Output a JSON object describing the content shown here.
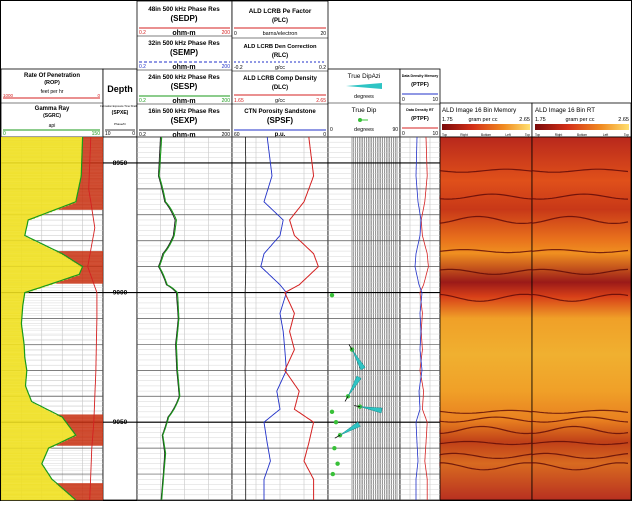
{
  "header": {
    "tracks": {
      "rop_gr": {
        "rop_title": "Rate Of Penetration",
        "rop_mnem": "(ROP)",
        "rop_unit": "feet per hr",
        "rop_left": "1000",
        "rop_right": "0",
        "gr_title": "Gamma Ray",
        "gr_mnem": "(SGRC)",
        "gr_unit": "api",
        "gr_left": "0",
        "gr_right": "150"
      },
      "depth": {
        "title": "Depth",
        "spxe_title": "Formation Exposure Time Shallow",
        "spxe_mnem": "(SPXE)",
        "spxe_unit": "Phase/hr",
        "spxe_left": "10",
        "spxe_right": "0"
      },
      "resistivity": {
        "c1_title": "48in 500 kHz Phase Res",
        "c1_mnem": "(SEDP)",
        "c1_unit": "ohm-m",
        "c1_left": "0.2",
        "c1_right": "200",
        "c2_title": "32in 500 kHz Phase Res",
        "c2_mnem": "(SEMP)",
        "c2_unit": "ohm-m",
        "c2_left": "0.2",
        "c2_right": "200",
        "c3_title": "24in 500 kHz Phase Res",
        "c3_mnem": "(SESP)",
        "c3_unit": "ohm-m",
        "c3_left": "0.2",
        "c3_right": "200",
        "c4_title": "16in 500 kHz Phase Res",
        "c4_mnem": "(SEXP)",
        "c4_unit": "ohm-m",
        "c4_left": "0.2",
        "c4_right": "200"
      },
      "density": {
        "c1_title": "ALD LCRB Pe Factor",
        "c1_mnem": "(PLC)",
        "c1_unit": "barns/electron",
        "c1_left": "0",
        "c1_right": "20",
        "c2_title": "ALD LCRB Den Correction",
        "c2_mnem": "(RLC)",
        "c2_unit": "g/cc",
        "c2_left": "-0.2",
        "c2_right": "0.2",
        "c3_title": "ALD LCRB Comp Density",
        "c3_mnem": "(DLC)",
        "c3_unit": "g/cc",
        "c3_left": "1.65",
        "c3_right": "2.65",
        "c4_title": "CTN Porosity Sandstone",
        "c4_mnem": "(SPSF)",
        "c4_unit": "p.u.",
        "c4_left": "60",
        "c4_right": "0"
      },
      "dip": {
        "azi_title": "True DipAzi",
        "azi_unit": "degrees",
        "dip_title": "True Dip",
        "dip_unit": "degrees",
        "dip_left": "0",
        "dip_right": "90"
      },
      "ptpf": {
        "title": "Data Density Memory",
        "mnem1": "(PTPF)",
        "left1": "0",
        "right1": "10",
        "title2": "Data Density RT",
        "mnem2": "(PTPF)",
        "left2": "0",
        "right2": "10"
      },
      "image_mem": {
        "title": "ALD Image 16 Bin Memory",
        "scale_left": "1.75",
        "scale_mid": "gram per cc",
        "scale_right": "2.65",
        "quads": [
          "Top",
          "Right",
          "Bottom",
          "Left",
          "Top"
        ]
      },
      "image_rt": {
        "title": "ALD Image 16 Bin RT",
        "scale_left": "1.75",
        "scale_mid": "gram per cc",
        "scale_right": "2.65",
        "quads": [
          "Top",
          "Right",
          "Bottom",
          "Left",
          "Top"
        ]
      }
    }
  },
  "colors": {
    "sedp": "#d42020",
    "semp": "#2030c8",
    "sesp": "#1a9a1a",
    "sexp": "#222222",
    "plc": "#d42020",
    "rlc": "#2030c8",
    "dlc": "#d42020",
    "spsf": "#2030c8",
    "gr_fill_sand": "#f0e020",
    "gr_fill_shale": "#c83010",
    "ptpf_mem": "#d42020",
    "ptpf_rt": "#2030c8",
    "dip_tadpole": "#2ec4c4",
    "dip_point": "#38c038"
  },
  "chart_data": {
    "type": "well-log",
    "depth_labels": [
      "8950",
      "9000",
      "9050"
    ],
    "depth_range": [
      8940,
      9080
    ],
    "gr": {
      "unit": "api",
      "range": [
        0,
        150
      ],
      "depth": [
        8940,
        8955,
        8965,
        8972,
        8978,
        8985,
        8990,
        8993,
        8997,
        9000,
        9005,
        9012,
        9020,
        9025,
        9030,
        9036,
        9042,
        9048,
        9055,
        9060,
        9066,
        9072,
        9080
      ],
      "values": [
        120,
        118,
        110,
        40,
        35,
        90,
        120,
        115,
        70,
        35,
        32,
        30,
        34,
        35,
        38,
        36,
        45,
        90,
        110,
        70,
        60,
        75,
        110
      ]
    },
    "rop": {
      "unit": "feet per hr",
      "range": [
        1000,
        0
      ],
      "depth": [
        8940,
        8960,
        8975,
        8990,
        9000,
        9010,
        9030,
        9050,
        9060,
        9080
      ],
      "values": [
        120,
        140,
        80,
        150,
        60,
        60,
        70,
        90,
        110,
        130
      ]
    },
    "resistivity": {
      "unit": "ohm-m",
      "range": [
        0.2,
        200
      ],
      "depth": [
        8940,
        8955,
        8965,
        8972,
        8978,
        8985,
        8990,
        8997,
        9000,
        9010,
        9020,
        9030,
        9040,
        9048,
        9055,
        9062,
        9070,
        9080
      ],
      "sesp": [
        1.2,
        1.0,
        1.6,
        3.5,
        3.0,
        1.4,
        1.0,
        1.8,
        3.8,
        4.2,
        3.5,
        3.8,
        4.5,
        2.0,
        1.3,
        1.6,
        1.4,
        1.2
      ],
      "sexp": [
        1.1,
        0.95,
        1.5,
        3.2,
        2.8,
        1.3,
        0.95,
        1.7,
        3.5,
        4.0,
        3.3,
        3.6,
        4.3,
        1.9,
        1.25,
        1.5,
        1.35,
        1.15
      ]
    },
    "density": {
      "depth": [
        8940,
        8955,
        8965,
        8972,
        8978,
        8985,
        8990,
        8997,
        9000,
        9008,
        9015,
        9022,
        9030,
        9038,
        9045,
        9050,
        9058,
        9065,
        9072,
        9080
      ],
      "dlc": [
        2.45,
        2.5,
        2.4,
        2.25,
        2.3,
        2.5,
        2.55,
        2.35,
        2.2,
        2.3,
        2.25,
        2.3,
        2.2,
        2.35,
        2.3,
        2.5,
        2.45,
        2.4,
        2.5,
        2.5
      ],
      "spsf": [
        38,
        35,
        40,
        28,
        30,
        40,
        42,
        30,
        26,
        30,
        28,
        27,
        26,
        32,
        30,
        40,
        38,
        36,
        40,
        40
      ]
    },
    "dip_points": [
      {
        "depth": 9001,
        "dip": 5
      },
      {
        "depth": 9022,
        "dip": 30,
        "azi": 150
      },
      {
        "depth": 9040,
        "dip": 25,
        "azi": 30
      },
      {
        "depth": 9044,
        "dip": 40,
        "azi": 100
      },
      {
        "depth": 9046,
        "dip": 5
      },
      {
        "depth": 9050,
        "dip": 10
      },
      {
        "depth": 9055,
        "dip": 15,
        "azi": 60
      },
      {
        "depth": 9060,
        "dip": 8
      },
      {
        "depth": 9066,
        "dip": 12
      },
      {
        "depth": 9070,
        "dip": 6
      }
    ]
  }
}
